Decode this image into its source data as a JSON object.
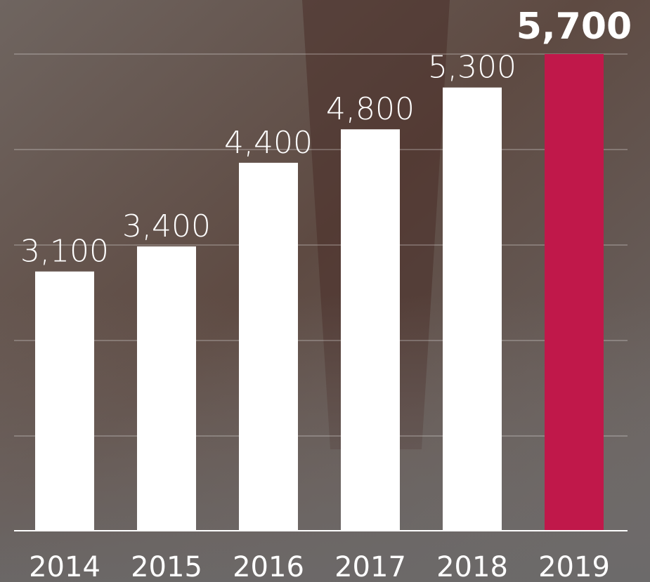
{
  "chart_data": {
    "type": "bar",
    "categories": [
      "2014",
      "2015",
      "2016",
      "2017",
      "2018",
      "2019"
    ],
    "values": [
      3100,
      3400,
      4400,
      4800,
      5300,
      5700
    ],
    "value_labels": [
      "3,100",
      "3,400",
      "4,400",
      "4,800",
      "5,300",
      "5,700"
    ],
    "colors": [
      "#ffffff",
      "#ffffff",
      "#ffffff",
      "#ffffff",
      "#ffffff",
      "#c0184a"
    ],
    "ylim": [
      0,
      5700
    ]
  }
}
